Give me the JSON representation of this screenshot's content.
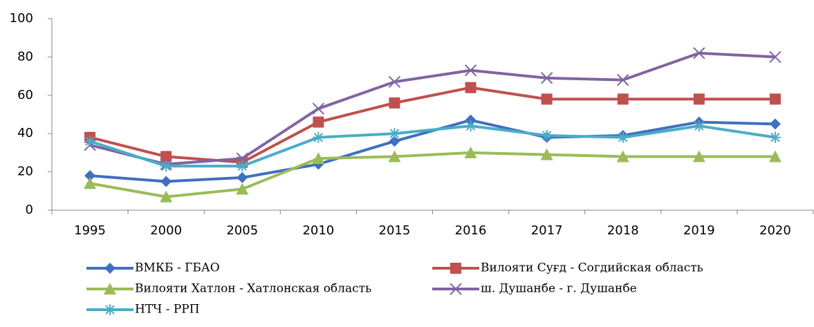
{
  "chart_data": {
    "type": "line",
    "categories": [
      "1995",
      "2000",
      "2005",
      "2010",
      "2015",
      "2016",
      "2017",
      "2018",
      "2019",
      "2020"
    ],
    "series": [
      {
        "name": "ВМКБ - ГБАО",
        "color": "#3f6fbf",
        "marker": "diamond",
        "values": [
          18,
          15,
          17,
          24,
          36,
          47,
          38,
          39,
          46,
          45
        ]
      },
      {
        "name": "Вилояти Суғд - Согдийская область",
        "color": "#c0504d",
        "marker": "square",
        "values": [
          38,
          28,
          25,
          46,
          56,
          64,
          58,
          58,
          58,
          58
        ]
      },
      {
        "name": "Вилояти Хатлон - Хатлонская область",
        "color": "#9bbb59",
        "marker": "triangle",
        "values": [
          14,
          7,
          11,
          27,
          28,
          30,
          29,
          28,
          28,
          28
        ]
      },
      {
        "name": "ш. Душанбе - г. Душанбе",
        "color": "#8064a2",
        "marker": "x",
        "values": [
          34,
          24,
          27,
          53,
          67,
          73,
          69,
          68,
          82,
          80
        ]
      },
      {
        "name": "НТЧ - РРП",
        "color": "#4bacc6",
        "marker": "star",
        "values": [
          36,
          23,
          23,
          38,
          40,
          44,
          39,
          38,
          44,
          38
        ]
      }
    ],
    "ylim": [
      0,
      100
    ],
    "yticks": [
      0,
      20,
      40,
      60,
      80,
      100
    ],
    "grid": false,
    "legend": "bottom"
  }
}
